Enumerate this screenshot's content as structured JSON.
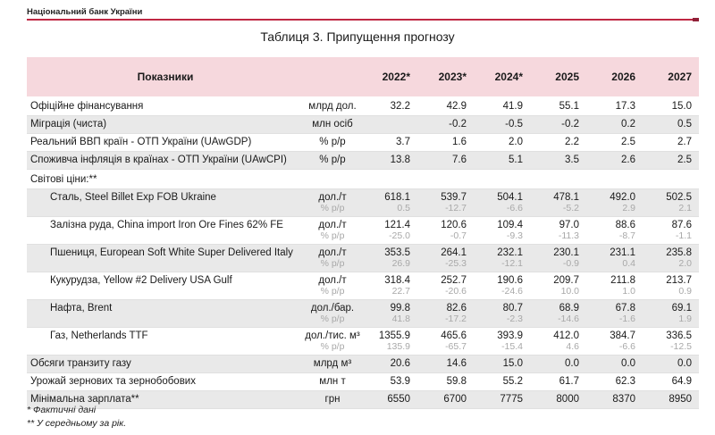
{
  "page": {
    "brand": "Національний банк України",
    "title": "Таблиця 3. Припущення прогнозу"
  },
  "colors": {
    "brand_red": "#bf2743",
    "brand_red_dark": "#8f2038",
    "header_pink": "#f6d8dd",
    "row_shade": "#e9e9e9",
    "sub_text_gray": "#a8a8a8"
  },
  "table": {
    "indicator_header": "Показники",
    "years": [
      "2022*",
      "2023*",
      "2024*",
      "2025",
      "2026",
      "2027"
    ],
    "rows": [
      {
        "label": "Офіційне фінансування",
        "unit": "млрд дол.",
        "values": [
          "32.2",
          "42.9",
          "41.9",
          "55.1",
          "17.3",
          "15.0"
        ]
      },
      {
        "label": "Міграція (чиста)",
        "unit": "млн осіб",
        "values": [
          "",
          "-0.2",
          "-0.5",
          "-0.2",
          "0.2",
          "0.5"
        ]
      },
      {
        "label": "Реальний ВВП країн - ОТП України (UAwGDP)",
        "unit": "% р/р",
        "values": [
          "3.7",
          "1.6",
          "2.0",
          "2.2",
          "2.5",
          "2.7"
        ]
      },
      {
        "label": "Споживча інфляція в країнах - ОТП України (UAwCPI)",
        "unit": "% р/р",
        "values": [
          "13.8",
          "7.6",
          "5.1",
          "3.5",
          "2.6",
          "2.5"
        ]
      },
      {
        "label": "Світові ціни:**",
        "section": true
      },
      {
        "label": "Сталь, Steel Billet Exp FOB Ukraine",
        "indent": true,
        "unit": "дол./т",
        "sub_unit": "% р/р",
        "values": [
          "618.1",
          "539.7",
          "504.1",
          "478.1",
          "492.0",
          "502.5"
        ],
        "sub_values": [
          "0.5",
          "-12.7",
          "-6.6",
          "-5.2",
          "2.9",
          "2.1"
        ]
      },
      {
        "label": "Залізна руда, China import Iron Ore Fines 62% FE",
        "indent": true,
        "unit": "дол./т",
        "sub_unit": "% р/р",
        "values": [
          "121.4",
          "120.6",
          "109.4",
          "97.0",
          "88.6",
          "87.6"
        ],
        "sub_values": [
          "-25.0",
          "-0.7",
          "-9.3",
          "-11.3",
          "-8.7",
          "-1.1"
        ]
      },
      {
        "label": "Пшениця, European Soft White Super Delivered Italy",
        "indent": true,
        "unit": "дол./т",
        "sub_unit": "% р/р",
        "values": [
          "353.5",
          "264.1",
          "232.1",
          "230.1",
          "231.1",
          "235.8"
        ],
        "sub_values": [
          "26.9",
          "-25.3",
          "-12.1",
          "-0.9",
          "0.4",
          "2.0"
        ]
      },
      {
        "label": "Кукурудза, Yellow #2 Delivery USA Gulf",
        "indent": true,
        "unit": "дол./т",
        "sub_unit": "% р/р",
        "values": [
          "318.4",
          "252.7",
          "190.6",
          "209.7",
          "211.8",
          "213.7"
        ],
        "sub_values": [
          "22.7",
          "-20.6",
          "-24.6",
          "10.0",
          "1.0",
          "0.9"
        ]
      },
      {
        "label": "Нафта, Brent",
        "indent": true,
        "unit": "дол./бар.",
        "sub_unit": "% р/р",
        "values": [
          "99.8",
          "82.6",
          "80.7",
          "68.9",
          "67.8",
          "69.1"
        ],
        "sub_values": [
          "41.8",
          "-17.2",
          "-2.3",
          "-14.6",
          "-1.6",
          "1.9"
        ]
      },
      {
        "label": "Газ, Netherlands TTF",
        "indent": true,
        "unit": "дол./тис. м³",
        "sub_unit": "% р/р",
        "values": [
          "1355.9",
          "465.6",
          "393.9",
          "412.0",
          "384.7",
          "336.5"
        ],
        "sub_values": [
          "135.9",
          "-65.7",
          "-15.4",
          "4.6",
          "-6.6",
          "-12.5"
        ]
      },
      {
        "label": "Обсяги транзиту газу",
        "unit": "млрд м³",
        "values": [
          "20.6",
          "14.6",
          "15.0",
          "0.0",
          "0.0",
          "0.0"
        ]
      },
      {
        "label": "Урожай зернових та зернобобових",
        "unit": "млн т",
        "values": [
          "53.9",
          "59.8",
          "55.2",
          "61.7",
          "62.3",
          "64.9"
        ]
      },
      {
        "label": "Мінімальна зарплата**",
        "unit": "грн",
        "values": [
          "6550",
          "6700",
          "7775",
          "8000",
          "8370",
          "8950"
        ]
      }
    ]
  },
  "footnotes": [
    "* Фактичні дані",
    "** У середньому за рік."
  ]
}
